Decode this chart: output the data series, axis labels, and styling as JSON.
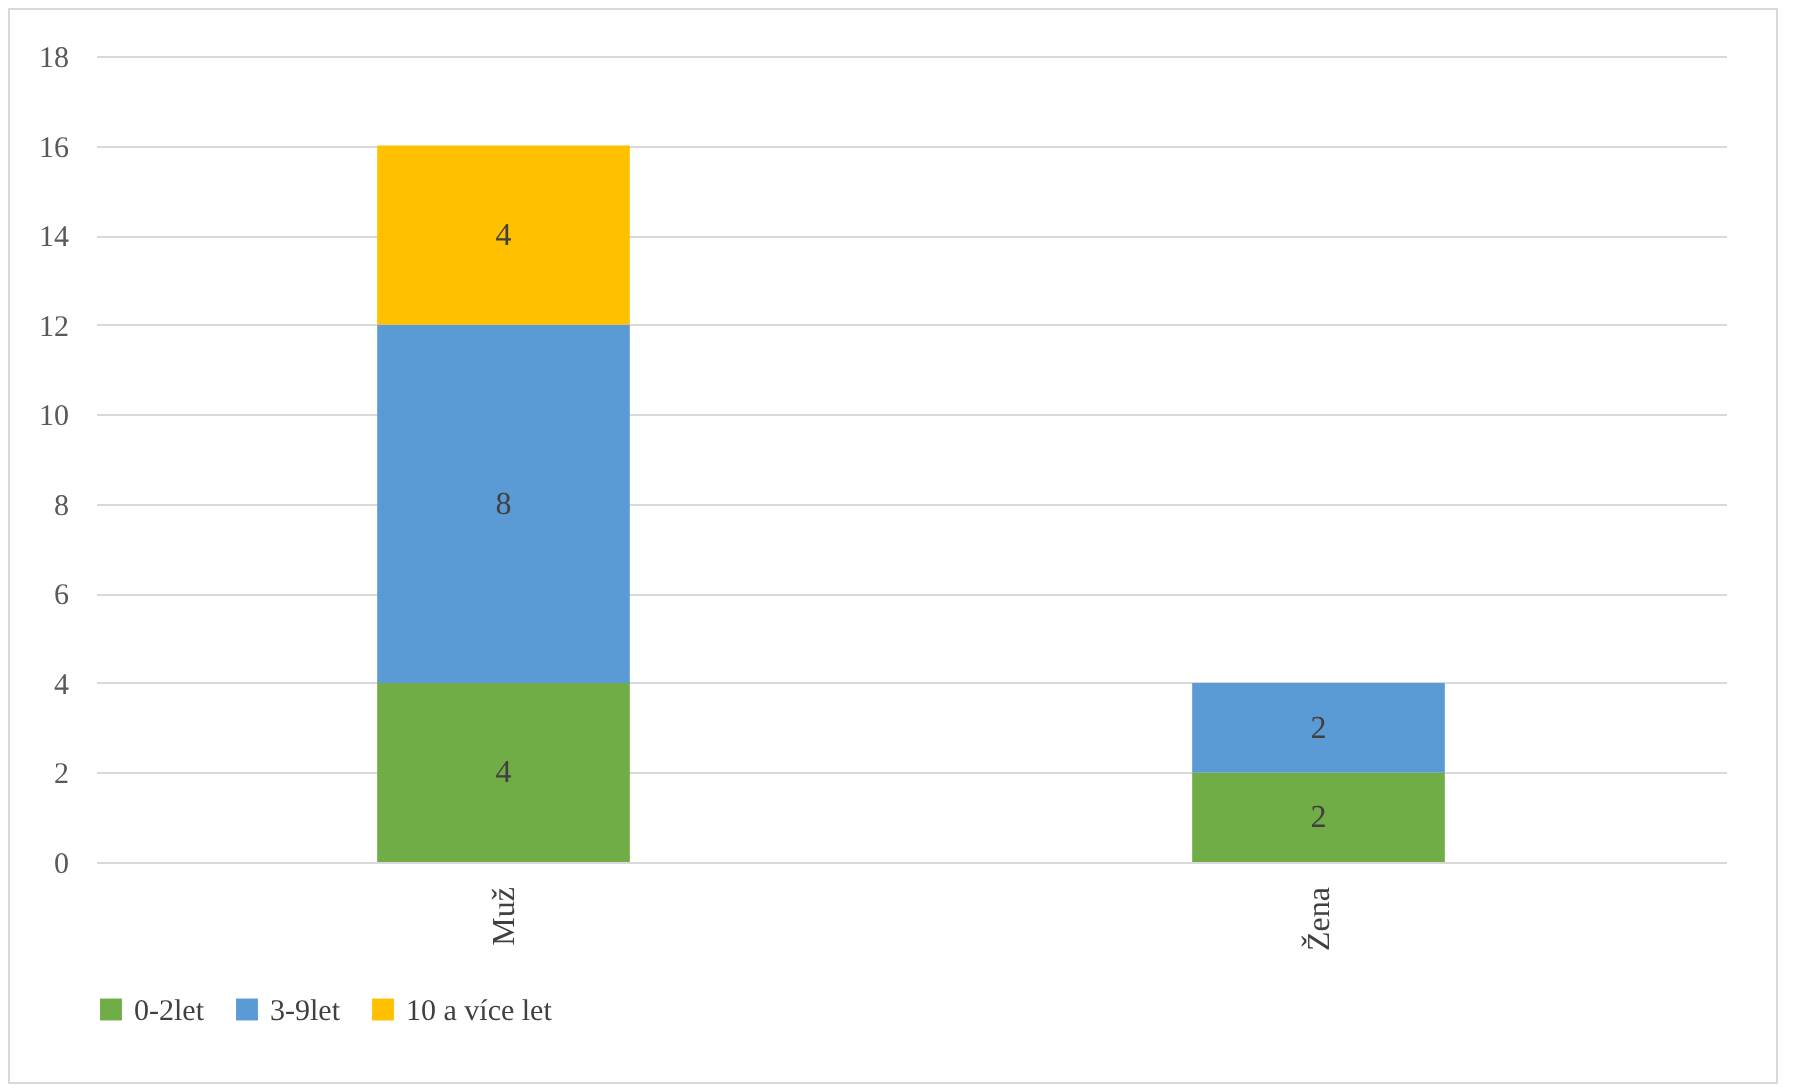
{
  "chart_data": {
    "type": "bar",
    "categories": [
      "Muž",
      "Žena"
    ],
    "stacked": true,
    "series": [
      {
        "name": "0-2let",
        "color": "#70ad47",
        "values": [
          4,
          2
        ]
      },
      {
        "name": "3-9let",
        "color": "#5b9bd5",
        "values": [
          8,
          2
        ]
      },
      {
        "name": "10 a více let",
        "color": "#ffc000",
        "values": [
          4,
          null
        ]
      }
    ],
    "ylim": [
      0,
      18
    ],
    "yticks": [
      0,
      2,
      4,
      6,
      8,
      10,
      12,
      14,
      16,
      18
    ],
    "grid": "y",
    "legend": "bottom",
    "data_labels": true
  }
}
